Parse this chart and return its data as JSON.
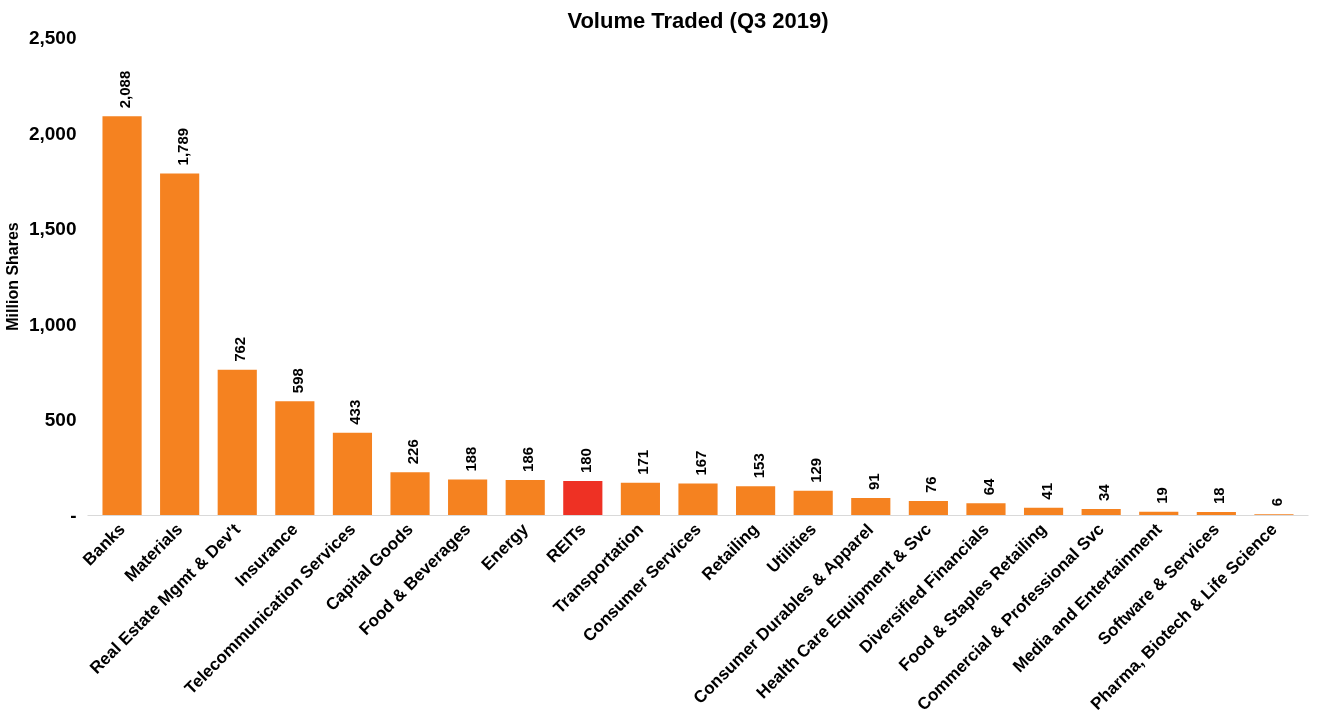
{
  "chart_data": {
    "type": "bar",
    "title": "Volume Traded (Q3 2019)",
    "ylabel": "Million Shares",
    "categories": [
      "Banks",
      "Materials",
      "Real Estate Mgmt & Dev't",
      "Insurance",
      "Telecommunication Services",
      "Capital Goods",
      "Food & Beverages",
      "Energy",
      "REITs",
      "Transportation",
      "Consumer Services",
      "Retailing",
      "Utilities",
      "Consumer Durables & Apparel",
      "Health Care Equipment & Svc",
      "Diversified Financials",
      "Food & Staples Retailing",
      "Commercial & Professional Svc",
      "Media and Entertainment",
      "Software & Services",
      "Pharma, Biotech & Life Science"
    ],
    "values": [
      2088,
      1789,
      762,
      598,
      433,
      226,
      188,
      186,
      180,
      171,
      167,
      153,
      129,
      91,
      76,
      64,
      41,
      34,
      19,
      18,
      6
    ],
    "colors": [
      "#f58220",
      "#f58220",
      "#f58220",
      "#f58220",
      "#f58220",
      "#f58220",
      "#f58220",
      "#f58220",
      "#ee3124",
      "#f58220",
      "#f58220",
      "#f58220",
      "#f58220",
      "#f58220",
      "#f58220",
      "#f58220",
      "#f58220",
      "#f58220",
      "#f58220",
      "#f58220",
      "#f58220"
    ],
    "ylim": [
      0,
      2500
    ],
    "yticks": [
      {
        "value": 0,
        "label": "-"
      },
      500,
      {
        "value": 1000,
        "label": "1,000"
      },
      {
        "value": 1500,
        "label": "1,500"
      },
      {
        "value": 2000,
        "label": "2,000"
      },
      {
        "value": 2500,
        "label": "2,500"
      }
    ],
    "value_labels": [
      "2,088",
      "1,789",
      "762",
      "598",
      "433",
      "226",
      "188",
      "186",
      "180",
      "171",
      "167",
      "153",
      "129",
      "91",
      "76",
      "64",
      "41",
      "34",
      "19",
      "18",
      "6"
    ],
    "grid": false
  }
}
